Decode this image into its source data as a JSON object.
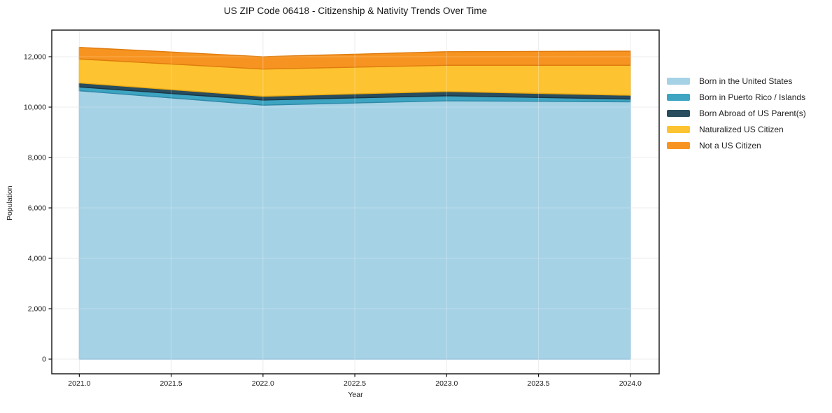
{
  "chart_data": {
    "type": "area",
    "stacked": true,
    "title": "US ZIP Code 06418 - Citizenship & Nativity Trends Over Time",
    "xlabel": "Year",
    "ylabel": "Population",
    "x": [
      2021,
      2022,
      2023,
      2024
    ],
    "series": [
      {
        "name": "Born in the United States",
        "color": "#a6d2e6",
        "edge_color": "#8bbdd8",
        "values": [
          10650,
          10080,
          10250,
          10210
        ]
      },
      {
        "name": "Born in Puerto Rico / Islands",
        "color": "#3da4c2",
        "edge_color": "#2d89a6",
        "values": [
          150,
          200,
          200,
          110
        ]
      },
      {
        "name": "Born Abroad of US Parent(s)",
        "color": "#284d5f",
        "edge_color": "#1a3542",
        "values": [
          160,
          150,
          170,
          150
        ]
      },
      {
        "name": "Naturalized US Citizen",
        "color": "#fdc330",
        "edge_color": "#e8a912",
        "values": [
          950,
          1080,
          1040,
          1190
        ]
      },
      {
        "name": "Not a US Citizen",
        "color": "#f79421",
        "edge_color": "#de7b0e",
        "values": [
          460,
          490,
          540,
          560
        ]
      }
    ],
    "stack_totals": [
      12370,
      12000,
      12200,
      12220
    ],
    "xlim": [
      2020.85,
      2024.157
    ],
    "ylim": [
      -583,
      13056
    ],
    "x_ticks": [
      {
        "label": "2021.0",
        "value": 2021.0
      },
      {
        "label": "2021.5",
        "value": 2021.5
      },
      {
        "label": "2022.0",
        "value": 2022.0
      },
      {
        "label": "2022.5",
        "value": 2022.5
      },
      {
        "label": "2023.0",
        "value": 2023.0
      },
      {
        "label": "2023.5",
        "value": 2023.5
      },
      {
        "label": "2024.0",
        "value": 2024.0
      }
    ],
    "y_ticks": [
      {
        "label": "0",
        "value": 0
      },
      {
        "label": "2,000",
        "value": 2000
      },
      {
        "label": "4,000",
        "value": 4000
      },
      {
        "label": "6,000",
        "value": 6000
      },
      {
        "label": "8,000",
        "value": 8000
      },
      {
        "label": "10,000",
        "value": 10000
      },
      {
        "label": "12,000",
        "value": 12000
      }
    ],
    "grid": true,
    "grid_color": "#e7e7e7",
    "legend_position": "right-outside"
  }
}
